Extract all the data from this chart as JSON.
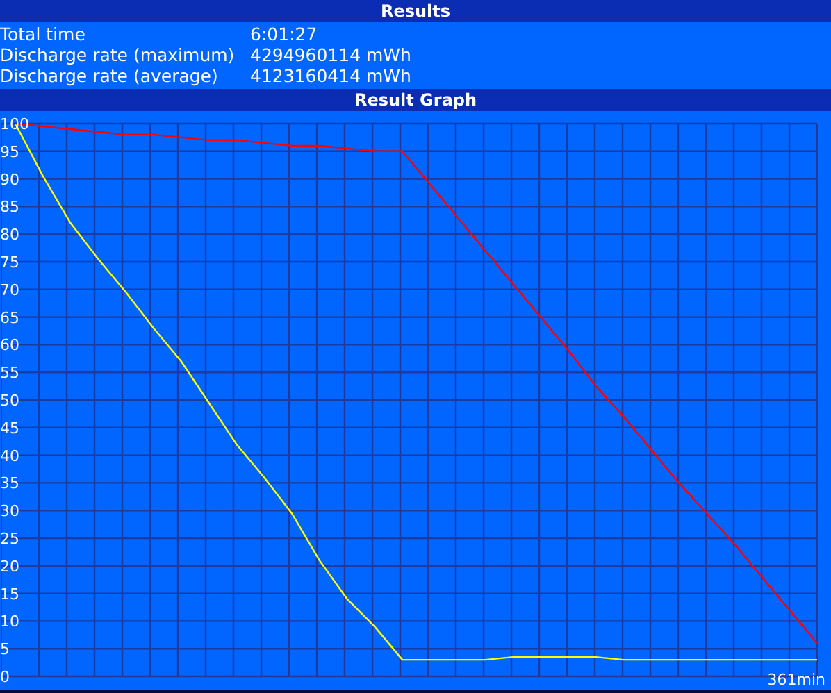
{
  "chart_data": {
    "type": "line",
    "title": "Results",
    "subtitle": "Result Graph",
    "xlabel": "361min",
    "annotations": [
      "Total time",
      "6:01:27",
      "Discharge rate (maximum)",
      "4294960114 mWh",
      "Discharge rate (average)",
      "4123160414 mWh"
    ],
    "categories": [
      null,
      null,
      null,
      null,
      null,
      null,
      null,
      null,
      null,
      null,
      null,
      null,
      null,
      null,
      null,
      null,
      null,
      null,
      null,
      null,
      null,
      null,
      null,
      null,
      null,
      null,
      null,
      null,
      null,
      null
    ],
    "series": [
      {
        "color": "#ffff00",
        "values": [
          100,
          90.5,
          82,
          75.5,
          69.5,
          63,
          57,
          49.5,
          42,
          36,
          29.5,
          21,
          14,
          9,
          3,
          3,
          3,
          3,
          3.5,
          3.5,
          3.5,
          3.5,
          3,
          3,
          3,
          3,
          3,
          3,
          3,
          3
        ]
      },
      {
        "color": "#ff0000",
        "values": [
          100,
          99.5,
          99,
          98.5,
          98,
          98,
          97.5,
          97,
          97,
          96.5,
          96,
          96,
          95.5,
          95,
          95,
          89,
          83,
          77,
          71,
          65,
          59,
          52.5,
          47,
          41,
          35,
          29.5,
          24,
          18,
          12,
          6
        ]
      }
    ],
    "ylim": [
      0,
      100
    ],
    "yticks": [
      0,
      5,
      10,
      15,
      20,
      25,
      30,
      35,
      40,
      45,
      50,
      55,
      60,
      65,
      70,
      75,
      80,
      85,
      90,
      95,
      100
    ],
    "grid": true,
    "marker": "none",
    "line_style": "solid"
  }
}
